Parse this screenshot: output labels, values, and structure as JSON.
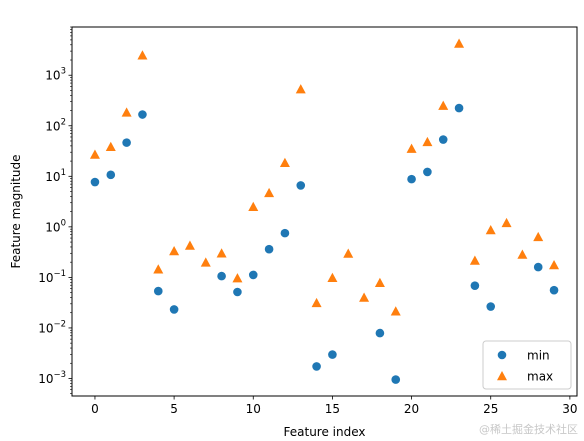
{
  "chart_data": {
    "type": "scatter",
    "title": "",
    "xlabel": "Feature index",
    "ylabel": "Feature magnitude",
    "yscale": "log",
    "xlim": [
      -1.45,
      30.45
    ],
    "ylim": [
      0.00045,
      9000
    ],
    "xticks": [
      0,
      5,
      10,
      15,
      20,
      25,
      30
    ],
    "yticks": [
      0.001,
      0.01,
      0.1,
      1,
      10,
      100,
      1000
    ],
    "ytick_labels": [
      {
        "base": "10",
        "exp": "−3"
      },
      {
        "base": "10",
        "exp": "−2"
      },
      {
        "base": "10",
        "exp": "−1"
      },
      {
        "base": "10",
        "exp": "0"
      },
      {
        "base": "10",
        "exp": "1"
      },
      {
        "base": "10",
        "exp": "2"
      },
      {
        "base": "10",
        "exp": "3"
      }
    ],
    "grid": false,
    "legend_position": "lower right",
    "series": [
      {
        "name": "min",
        "marker": "circle",
        "color": "#1f77b4",
        "x": [
          0,
          1,
          2,
          3,
          4,
          5,
          8,
          9,
          10,
          11,
          12,
          13,
          14,
          15,
          18,
          19,
          20,
          21,
          22,
          23,
          24,
          25,
          28,
          29
        ],
        "y": [
          7.7,
          10.7,
          46.4,
          167,
          0.0536,
          0.0232,
          0.106,
          0.0514,
          0.112,
          0.362,
          0.751,
          6.6,
          0.00173,
          0.00297,
          0.0079,
          0.00095,
          8.8,
          12.2,
          53.4,
          224,
          0.0686,
          0.0265,
          0.16,
          0.0559
        ]
      },
      {
        "name": "max",
        "marker": "triangle",
        "color": "#ff7f0e",
        "x": [
          0,
          1,
          2,
          3,
          4,
          5,
          6,
          7,
          8,
          9,
          10,
          11,
          12,
          13,
          14,
          15,
          16,
          17,
          18,
          19,
          20,
          21,
          22,
          23,
          24,
          25,
          26,
          27,
          28,
          29
        ],
        "y": [
          27,
          38.5,
          184,
          2480,
          0.145,
          0.333,
          0.427,
          0.198,
          0.3,
          0.0969,
          2.5,
          4.7,
          18.6,
          531,
          0.0313,
          0.0983,
          0.297,
          0.0399,
          0.0783,
          0.0214,
          35.3,
          48,
          251,
          4250,
          0.216,
          0.865,
          1.2,
          0.283,
          0.632,
          0.176
        ]
      }
    ]
  },
  "watermark": "@稀土掘金技术社区"
}
